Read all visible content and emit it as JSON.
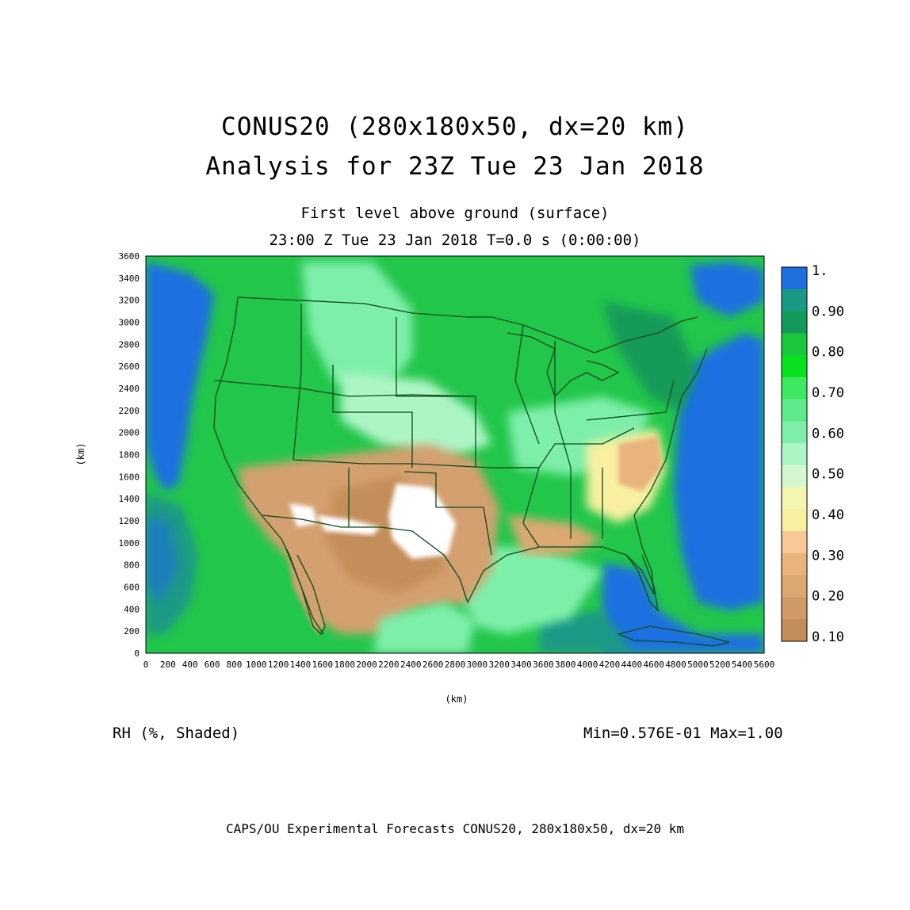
{
  "header": {
    "title_line1": "CONUS20 (280x180x50, dx=20 km)",
    "title_line2": "Analysis for 23Z Tue 23 Jan 2018",
    "level": "First level above ground (surface)",
    "valid_time": "23:00 Z Tue 23 Jan 2018    T=0.0 s (0:00:00)"
  },
  "axes": {
    "x_label": "(km)",
    "y_label": "(km)",
    "x_range": [
      0,
      5600
    ],
    "y_range": [
      0,
      3600
    ],
    "x_ticks": [
      0,
      200,
      400,
      600,
      800,
      1000,
      1200,
      1400,
      1600,
      1800,
      2000,
      2200,
      2400,
      2600,
      2800,
      3000,
      3200,
      3400,
      3600,
      3800,
      4000,
      4200,
      4400,
      4600,
      4800,
      5000,
      5200,
      5400,
      5600
    ],
    "y_ticks": [
      0,
      200,
      400,
      600,
      800,
      1000,
      1200,
      1400,
      1600,
      1800,
      2000,
      2200,
      2400,
      2600,
      2800,
      3000,
      3200,
      3400,
      3600
    ]
  },
  "colorbar": {
    "labels": [
      "1.",
      "0.90",
      "0.80",
      "0.70",
      "0.60",
      "0.50",
      "0.40",
      "0.30",
      "0.20",
      "0.10"
    ],
    "bins": [
      {
        "color": "#1f6fe0"
      },
      {
        "color": "#1a9a86"
      },
      {
        "color": "#149a5a"
      },
      {
        "color": "#1cc63c"
      },
      {
        "color": "#08e21e"
      },
      {
        "color": "#3ee860"
      },
      {
        "color": "#5eea8a"
      },
      {
        "color": "#7eefaa"
      },
      {
        "color": "#aef5c6"
      },
      {
        "color": "#d4f7d0"
      },
      {
        "color": "#f4f6b0"
      },
      {
        "color": "#f8f0a0"
      },
      {
        "color": "#f8c898"
      },
      {
        "color": "#e8b47c"
      },
      {
        "color": "#dca872"
      },
      {
        "color": "#d09a66"
      },
      {
        "color": "#c48e5a"
      }
    ]
  },
  "footer_left": "RH (%, Shaded)",
  "stats": "Min=0.576E-01 Max=1.00",
  "footer": "CAPS/OU Experimental Forecasts  CONUS20, 280x180x50, dx=20 km",
  "colors": {
    "ocean_dry": "#1f6fe0",
    "ocean_moist": "#1a9a86",
    "land_moist": "#22c64a",
    "land_mid": "#7eefaa",
    "land_dry": "#d4a070",
    "land_very_dry": "#ffffff",
    "boundary": "#0b4a1a"
  }
}
